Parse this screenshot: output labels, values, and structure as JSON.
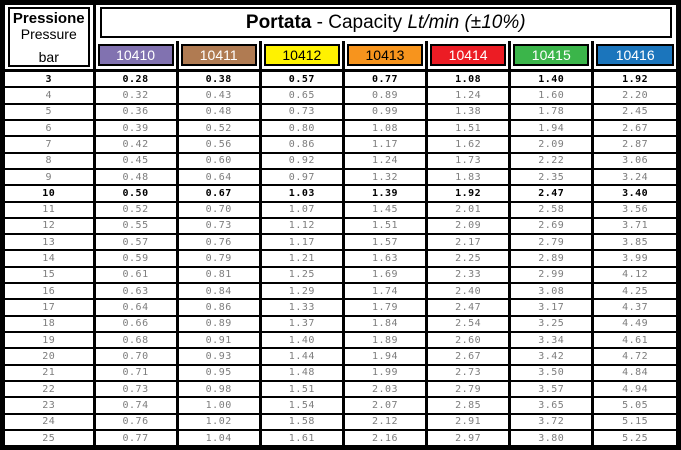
{
  "header": {
    "pressure_label_it": "Pressione",
    "pressure_label_en": "Pressure",
    "pressure_unit": "bar",
    "title_bold": "Portata",
    "title_separator": " - ",
    "title_normal": "Capacity ",
    "title_italic": "Lt/min (±10%)"
  },
  "columns": [
    {
      "code": "10410",
      "bg": "#8172B0",
      "fg": "#FFFFFF"
    },
    {
      "code": "10411",
      "bg": "#B07B52",
      "fg": "#FFFFFF"
    },
    {
      "code": "10412",
      "bg": "#FFF200",
      "fg": "#000000"
    },
    {
      "code": "10413",
      "bg": "#F7941D",
      "fg": "#000000"
    },
    {
      "code": "10414",
      "bg": "#EC1C24",
      "fg": "#FFFFFF"
    },
    {
      "code": "10415",
      "bg": "#3BB54A",
      "fg": "#FFFFFF"
    },
    {
      "code": "10416",
      "bg": "#1B75BC",
      "fg": "#FFFFFF"
    }
  ],
  "chart_data": {
    "type": "table",
    "title": "Portata - Capacity Lt/min (±10%)",
    "row_header": "Pressione / Pressure (bar)",
    "columns": [
      "10410",
      "10411",
      "10412",
      "10413",
      "10414",
      "10415",
      "10416"
    ],
    "bold_rows": [
      "3",
      "10"
    ],
    "rows": [
      {
        "bar": "3",
        "bold": true,
        "values": [
          "0.28",
          "0.38",
          "0.57",
          "0.77",
          "1.08",
          "1.40",
          "1.92"
        ]
      },
      {
        "bar": "4",
        "bold": false,
        "values": [
          "0.32",
          "0.43",
          "0.65",
          "0.89",
          "1.24",
          "1.60",
          "2.20"
        ]
      },
      {
        "bar": "5",
        "bold": false,
        "values": [
          "0.36",
          "0.48",
          "0.73",
          "0.99",
          "1.38",
          "1.78",
          "2.45"
        ]
      },
      {
        "bar": "6",
        "bold": false,
        "values": [
          "0.39",
          "0.52",
          "0.80",
          "1.08",
          "1.51",
          "1.94",
          "2.67"
        ]
      },
      {
        "bar": "7",
        "bold": false,
        "values": [
          "0.42",
          "0.56",
          "0.86",
          "1.17",
          "1.62",
          "2.09",
          "2.87"
        ]
      },
      {
        "bar": "8",
        "bold": false,
        "values": [
          "0.45",
          "0.60",
          "0.92",
          "1.24",
          "1.73",
          "2.22",
          "3.06"
        ]
      },
      {
        "bar": "9",
        "bold": false,
        "values": [
          "0.48",
          "0.64",
          "0.97",
          "1.32",
          "1.83",
          "2.35",
          "3.24"
        ]
      },
      {
        "bar": "10",
        "bold": true,
        "values": [
          "0.50",
          "0.67",
          "1.03",
          "1.39",
          "1.92",
          "2.47",
          "3.40"
        ]
      },
      {
        "bar": "11",
        "bold": false,
        "values": [
          "0.52",
          "0.70",
          "1.07",
          "1.45",
          "2.01",
          "2.58",
          "3.56"
        ]
      },
      {
        "bar": "12",
        "bold": false,
        "values": [
          "0.55",
          "0.73",
          "1.12",
          "1.51",
          "2.09",
          "2.69",
          "3.71"
        ]
      },
      {
        "bar": "13",
        "bold": false,
        "values": [
          "0.57",
          "0.76",
          "1.17",
          "1.57",
          "2.17",
          "2.79",
          "3.85"
        ]
      },
      {
        "bar": "14",
        "bold": false,
        "values": [
          "0.59",
          "0.79",
          "1.21",
          "1.63",
          "2.25",
          "2.89",
          "3.99"
        ]
      },
      {
        "bar": "15",
        "bold": false,
        "values": [
          "0.61",
          "0.81",
          "1.25",
          "1.69",
          "2.33",
          "2.99",
          "4.12"
        ]
      },
      {
        "bar": "16",
        "bold": false,
        "values": [
          "0.63",
          "0.84",
          "1.29",
          "1.74",
          "2.40",
          "3.08",
          "4.25"
        ]
      },
      {
        "bar": "17",
        "bold": false,
        "values": [
          "0.64",
          "0.86",
          "1.33",
          "1.79",
          "2.47",
          "3.17",
          "4.37"
        ]
      },
      {
        "bar": "18",
        "bold": false,
        "values": [
          "0.66",
          "0.89",
          "1.37",
          "1.84",
          "2.54",
          "3.25",
          "4.49"
        ]
      },
      {
        "bar": "19",
        "bold": false,
        "values": [
          "0.68",
          "0.91",
          "1.40",
          "1.89",
          "2.60",
          "3.34",
          "4.61"
        ]
      },
      {
        "bar": "20",
        "bold": false,
        "values": [
          "0.70",
          "0.93",
          "1.44",
          "1.94",
          "2.67",
          "3.42",
          "4.72"
        ]
      },
      {
        "bar": "21",
        "bold": false,
        "values": [
          "0.71",
          "0.95",
          "1.48",
          "1.99",
          "2.73",
          "3.50",
          "4.84"
        ]
      },
      {
        "bar": "22",
        "bold": false,
        "values": [
          "0.73",
          "0.98",
          "1.51",
          "2.03",
          "2.79",
          "3.57",
          "4.94"
        ]
      },
      {
        "bar": "23",
        "bold": false,
        "values": [
          "0.74",
          "1.00",
          "1.54",
          "2.07",
          "2.85",
          "3.65",
          "5.05"
        ]
      },
      {
        "bar": "24",
        "bold": false,
        "values": [
          "0.76",
          "1.02",
          "1.58",
          "2.12",
          "2.91",
          "3.72",
          "5.15"
        ]
      },
      {
        "bar": "25",
        "bold": false,
        "values": [
          "0.77",
          "1.04",
          "1.61",
          "2.16",
          "2.97",
          "3.80",
          "5.25"
        ]
      }
    ]
  }
}
